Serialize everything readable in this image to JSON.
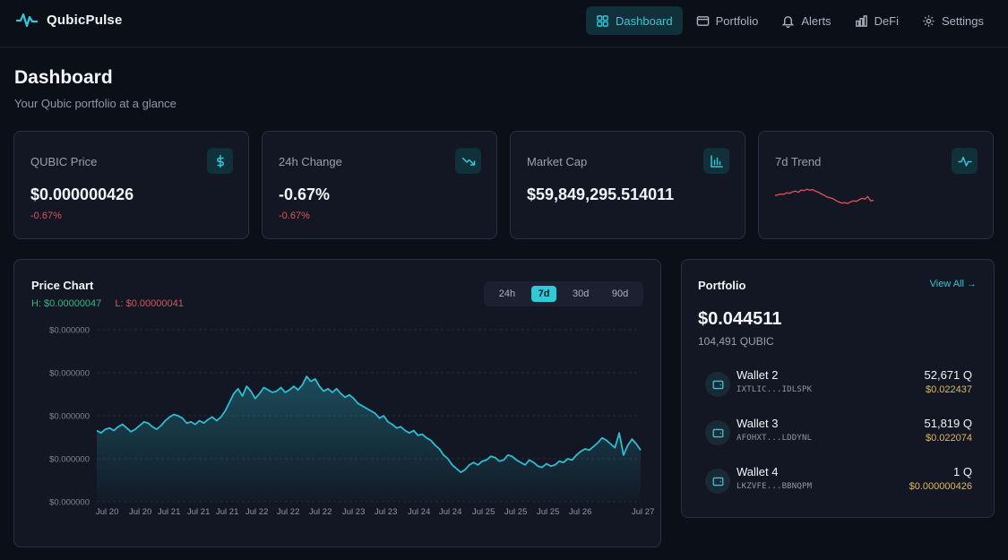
{
  "nav": {
    "brand": "QubicPulse",
    "items": [
      {
        "label": "Dashboard",
        "icon": "grid-icon",
        "active": true
      },
      {
        "label": "Portfolio",
        "icon": "wallet-icon",
        "active": false
      },
      {
        "label": "Alerts",
        "icon": "bell-icon",
        "active": false
      },
      {
        "label": "DeFi",
        "icon": "bar-chart-icon",
        "active": false
      },
      {
        "label": "Settings",
        "icon": "gear-icon",
        "active": false
      }
    ]
  },
  "header": {
    "title": "Dashboard",
    "subtitle": "Your Qubic portfolio at a glance"
  },
  "stats": [
    {
      "label": "QUBIC Price",
      "value": "$0.000000426",
      "change": "-0.67%",
      "icon": "dollar-icon"
    },
    {
      "label": "24h Change",
      "value": "-0.67%",
      "change": "-0.67%",
      "icon": "trending-down-icon"
    },
    {
      "label": "Market Cap",
      "value": "$59,849,295.514011",
      "icon": "bar-chart-icon"
    },
    {
      "label": "7d Trend",
      "icon": "activity-icon"
    }
  ],
  "sparkline": [
    0.45,
    0.48,
    0.52,
    0.5,
    0.58,
    0.55,
    0.62,
    0.66,
    0.6,
    0.7,
    0.68,
    0.74,
    0.7,
    0.72,
    0.65,
    0.6,
    0.52,
    0.46,
    0.38,
    0.34,
    0.3,
    0.22,
    0.15,
    0.1,
    0.12,
    0.08,
    0.15,
    0.2,
    0.18,
    0.25,
    0.32,
    0.28,
    0.4,
    0.2,
    0.22
  ],
  "price_chart": {
    "title": "Price Chart",
    "high_label": "H: $0.00000047",
    "low_label": "L: $0.00000041",
    "ranges": [
      {
        "label": "24h",
        "active": false
      },
      {
        "label": "7d",
        "active": true
      },
      {
        "label": "30d",
        "active": false
      },
      {
        "label": "90d",
        "active": false
      }
    ],
    "line_color": "#2fbcd0"
  },
  "chart_data": {
    "type": "area",
    "title": "Price Chart",
    "y_tick_labels": [
      "$0.000000",
      "$0.000000",
      "$0.000000",
      "$0.000000",
      "$0.000000"
    ],
    "x_tick_labels": [
      "Jul 20",
      "Jul 20",
      "Jul 21",
      "Jul 21",
      "Jul 21",
      "Jul 22",
      "Jul 22",
      "Jul 22",
      "Jul 23",
      "Jul 23",
      "Jul 24",
      "Jul 24",
      "Jul 25",
      "Jul 25",
      "Jul 25",
      "Jul 26",
      "Jul 27"
    ],
    "ylim": [
      4.05e-07,
      4.75e-07
    ],
    "grid": true,
    "series": [
      {
        "values": [
          4.34e-07,
          4.33e-07,
          4.345e-07,
          4.35e-07,
          4.34e-07,
          4.355e-07,
          4.365e-07,
          4.35e-07,
          4.335e-07,
          4.345e-07,
          4.36e-07,
          4.375e-07,
          4.37e-07,
          4.355e-07,
          4.345e-07,
          4.36e-07,
          4.38e-07,
          4.395e-07,
          4.405e-07,
          4.4e-07,
          4.39e-07,
          4.37e-07,
          4.375e-07,
          4.365e-07,
          4.38e-07,
          4.37e-07,
          4.385e-07,
          4.395e-07,
          4.38e-07,
          4.395e-07,
          4.42e-07,
          4.455e-07,
          4.49e-07,
          4.51e-07,
          4.48e-07,
          4.52e-07,
          4.5e-07,
          4.47e-07,
          4.49e-07,
          4.515e-07,
          4.505e-07,
          4.495e-07,
          4.5e-07,
          4.515e-07,
          4.495e-07,
          4.505e-07,
          4.52e-07,
          4.505e-07,
          4.525e-07,
          4.56e-07,
          4.54e-07,
          4.55e-07,
          4.52e-07,
          4.5e-07,
          4.51e-07,
          4.495e-07,
          4.51e-07,
          4.49e-07,
          4.475e-07,
          4.485e-07,
          4.47e-07,
          4.45e-07,
          4.44e-07,
          4.43e-07,
          4.42e-07,
          4.41e-07,
          4.39e-07,
          4.4e-07,
          4.375e-07,
          4.365e-07,
          4.35e-07,
          4.355e-07,
          4.34e-07,
          4.33e-07,
          4.34e-07,
          4.32e-07,
          4.325e-07,
          4.31e-07,
          4.3e-07,
          4.28e-07,
          4.265e-07,
          4.24e-07,
          4.225e-07,
          4.2e-07,
          4.185e-07,
          4.17e-07,
          4.18e-07,
          4.2e-07,
          4.21e-07,
          4.2e-07,
          4.215e-07,
          4.22e-07,
          4.235e-07,
          4.23e-07,
          4.215e-07,
          4.22e-07,
          4.24e-07,
          4.235e-07,
          4.22e-07,
          4.21e-07,
          4.2e-07,
          4.22e-07,
          4.21e-07,
          4.195e-07,
          4.19e-07,
          4.205e-07,
          4.195e-07,
          4.2e-07,
          4.215e-07,
          4.21e-07,
          4.225e-07,
          4.22e-07,
          4.24e-07,
          4.255e-07,
          4.265e-07,
          4.26e-07,
          4.275e-07,
          4.29e-07,
          4.31e-07,
          4.3e-07,
          4.285e-07,
          4.27e-07,
          4.33e-07,
          4.24e-07,
          4.28e-07,
          4.305e-07,
          4.285e-07,
          4.26e-07
        ]
      }
    ]
  },
  "portfolio": {
    "title": "Portfolio",
    "view_all": "View All →",
    "total_value": "$0.044511",
    "total_qubic": "104,491 QUBIC",
    "wallets": [
      {
        "name": "Wallet 2",
        "address": "IXTLIC...IDLSPK",
        "qubic": "52,671 Q",
        "usd": "$0.022437"
      },
      {
        "name": "Wallet 3",
        "address": "AFOHXT...LDDYNL",
        "qubic": "51,819 Q",
        "usd": "$0.022074"
      },
      {
        "name": "Wallet 4",
        "address": "LKZVFE...BBNQPM",
        "qubic": "1 Q",
        "usd": "$0.000000426"
      }
    ]
  },
  "colors": {
    "accent": "#33c6d6",
    "negative": "#e0525a",
    "positive": "#2fb889",
    "gold": "#e1b85b"
  }
}
